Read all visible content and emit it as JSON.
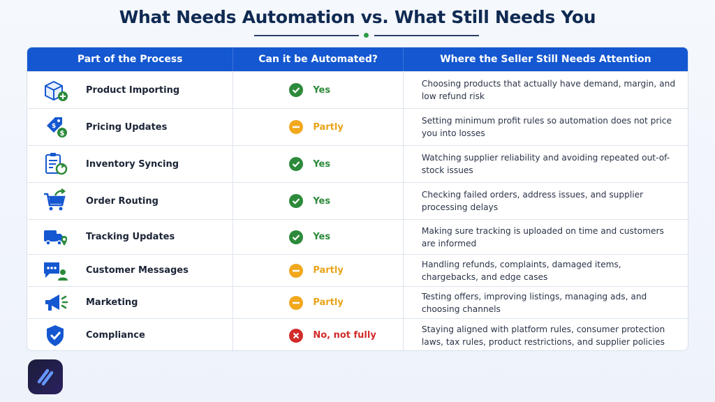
{
  "title": "What Needs Automation vs. What Still Needs You",
  "table": {
    "headers": [
      "Part of the Process",
      "Can it be Automated?",
      "Where the Seller Still Needs Attention"
    ],
    "rows": [
      {
        "process": "Product Importing",
        "icon": "box-plus-icon",
        "status": "Yes",
        "status_type": "yes",
        "attention": "Choosing products that actually have demand, margin, and low refund risk"
      },
      {
        "process": "Pricing Updates",
        "icon": "price-tag-icon",
        "status": "Partly",
        "status_type": "partly",
        "attention": "Setting minimum profit rules so automation does not price you into losses"
      },
      {
        "process": "Inventory Syncing",
        "icon": "clipboard-sync-icon",
        "status": "Yes",
        "status_type": "yes",
        "attention": "Watching supplier reliability and avoiding repeated out-of-stock issues"
      },
      {
        "process": "Order Routing",
        "icon": "cart-arrow-icon",
        "status": "Yes",
        "status_type": "yes",
        "attention": "Checking failed orders, address issues, and supplier processing delays"
      },
      {
        "process": "Tracking Updates",
        "icon": "truck-location-icon",
        "status": "Yes",
        "status_type": "yes",
        "attention": "Making sure tracking is uploaded on time and customers are informed"
      },
      {
        "process": "Customer Messages",
        "icon": "chat-user-icon",
        "status": "Partly",
        "status_type": "partly",
        "attention": "Handling refunds, complaints, damaged items, chargebacks, and edge cases"
      },
      {
        "process": "Marketing",
        "icon": "megaphone-icon",
        "status": "Partly",
        "status_type": "partly",
        "attention": "Testing offers, improving listings, managing ads, and choosing channels"
      },
      {
        "process": "Compliance",
        "icon": "shield-check-icon",
        "status": "No, not fully",
        "status_type": "no",
        "attention": "Staying aligned with platform rules, consumer protection laws, tax rules, product restrictions, and supplier policies"
      }
    ]
  },
  "colors": {
    "header": "#1457d0",
    "yes": "#2c8a3a",
    "partly": "#e9a318",
    "no": "#d22b2b",
    "title": "#0f2a52"
  },
  "logo": {
    "icon": "app-logo-icon"
  }
}
